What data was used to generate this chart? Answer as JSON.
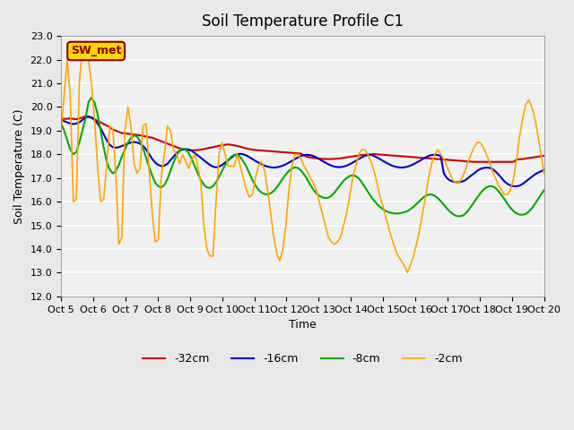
{
  "title": "Soil Temperature Profile C1",
  "xlabel": "Time",
  "ylabel": "Soil Temperature (C)",
  "ylim": [
    12.0,
    23.0
  ],
  "yticks": [
    12.0,
    13.0,
    14.0,
    15.0,
    16.0,
    17.0,
    18.0,
    19.0,
    20.0,
    21.0,
    22.0,
    23.0
  ],
  "xtick_labels": [
    "Oct 5",
    "Oct 6",
    "Oct 7",
    "Oct 8",
    "Oct 9",
    "Oct 10",
    "Oct 11",
    "Oct 12",
    "Oct 13",
    "Oct 14",
    "Oct 15",
    "Oct 16",
    "Oct 17",
    "Oct 18",
    "Oct 19",
    "Oct 20"
  ],
  "annotation_text": "SW_met",
  "annotation_fgcolor": "#8B0000",
  "annotation_bgcolor": "#FFD700",
  "background_color": "#E8E8E8",
  "plot_bg_color": "#F0F0F0",
  "n_points": 160,
  "series": [
    {
      "label": "-32cm",
      "color": "#CC0000",
      "linewidth": 1.5,
      "values": [
        19.5,
        19.5,
        19.5,
        19.52,
        19.5,
        19.48,
        19.52,
        19.55,
        19.6,
        19.58,
        19.55,
        19.5,
        19.4,
        19.35,
        19.28,
        19.22,
        19.15,
        19.05,
        19.0,
        18.95,
        18.9,
        18.88,
        18.87,
        18.85,
        18.83,
        18.82,
        18.8,
        18.78,
        18.75,
        18.72,
        18.7,
        18.65,
        18.6,
        18.55,
        18.5,
        18.45,
        18.4,
        18.35,
        18.3,
        18.25,
        18.22,
        18.2,
        18.18,
        18.17,
        18.17,
        18.18,
        18.2,
        18.22,
        18.25,
        18.28,
        18.3,
        18.33,
        18.36,
        18.38,
        18.4,
        18.42,
        18.4,
        18.38,
        18.35,
        18.32,
        18.28,
        18.25,
        18.22,
        18.2,
        18.18,
        18.17,
        18.16,
        18.15,
        18.14,
        18.13,
        18.12,
        18.11,
        18.1,
        18.09,
        18.08,
        18.07,
        18.06,
        18.05,
        18.04,
        18.03,
        17.95,
        17.9,
        17.87,
        17.85,
        17.83,
        17.82,
        17.81,
        17.8,
        17.8,
        17.8,
        17.81,
        17.82,
        17.83,
        17.85,
        17.87,
        17.89,
        17.91,
        17.93,
        17.95,
        17.97,
        17.98,
        17.99,
        18.0,
        18.01,
        18.0,
        17.99,
        17.98,
        17.97,
        17.96,
        17.95,
        17.94,
        17.93,
        17.92,
        17.91,
        17.9,
        17.89,
        17.88,
        17.87,
        17.86,
        17.85,
        17.84,
        17.83,
        17.82,
        17.81,
        17.8,
        17.79,
        17.78,
        17.77,
        17.76,
        17.75,
        17.74,
        17.73,
        17.72,
        17.71,
        17.7,
        17.69,
        17.68,
        17.68,
        17.68,
        17.68,
        17.68,
        17.68,
        17.68,
        17.68,
        17.68,
        17.68,
        17.68,
        17.68,
        17.68,
        17.68,
        17.78,
        17.79,
        17.8,
        17.82,
        17.84,
        17.86,
        17.88,
        17.9,
        17.92,
        17.94
      ]
    },
    {
      "label": "-16cm",
      "color": "#0000CC",
      "linewidth": 1.5,
      "values": [
        19.45,
        19.4,
        19.35,
        19.3,
        19.28,
        19.3,
        19.35,
        19.45,
        19.55,
        19.6,
        19.55,
        19.45,
        19.3,
        19.1,
        18.85,
        18.6,
        18.4,
        18.3,
        18.28,
        18.3,
        18.35,
        18.4,
        18.45,
        18.5,
        18.52,
        18.5,
        18.45,
        18.35,
        18.2,
        18.0,
        17.8,
        17.65,
        17.55,
        17.5,
        17.52,
        17.6,
        17.75,
        17.9,
        18.05,
        18.15,
        18.2,
        18.22,
        18.2,
        18.15,
        18.05,
        17.95,
        17.85,
        17.75,
        17.65,
        17.55,
        17.48,
        17.45,
        17.48,
        17.55,
        17.65,
        17.75,
        17.85,
        17.95,
        18.0,
        18.02,
        18.0,
        17.95,
        17.88,
        17.8,
        17.72,
        17.65,
        17.58,
        17.52,
        17.48,
        17.45,
        17.44,
        17.45,
        17.48,
        17.52,
        17.58,
        17.65,
        17.72,
        17.8,
        17.87,
        17.93,
        17.97,
        17.98,
        17.97,
        17.93,
        17.87,
        17.8,
        17.72,
        17.65,
        17.58,
        17.52,
        17.48,
        17.46,
        17.46,
        17.48,
        17.52,
        17.58,
        17.65,
        17.72,
        17.8,
        17.87,
        17.93,
        17.97,
        17.98,
        17.93,
        17.87,
        17.8,
        17.72,
        17.65,
        17.58,
        17.52,
        17.48,
        17.45,
        17.44,
        17.45,
        17.48,
        17.52,
        17.58,
        17.65,
        17.72,
        17.8,
        17.87,
        17.93,
        17.97,
        17.98,
        17.97,
        17.93,
        17.2,
        17.0,
        16.9,
        16.85,
        16.82,
        16.82,
        16.85,
        16.9,
        17.0,
        17.1,
        17.2,
        17.3,
        17.38,
        17.42,
        17.44,
        17.43,
        17.38,
        17.28,
        17.15,
        17.0,
        16.85,
        16.75,
        16.68,
        16.65,
        16.65,
        16.68,
        16.75,
        16.85,
        16.95,
        17.05,
        17.15,
        17.22,
        17.28,
        17.35
      ]
    },
    {
      "label": "-8cm",
      "color": "#00AA00",
      "linewidth": 1.5,
      "values": [
        19.3,
        19.0,
        18.6,
        18.2,
        18.0,
        18.1,
        18.5,
        19.0,
        19.5,
        20.2,
        20.4,
        20.2,
        19.7,
        19.0,
        18.3,
        17.7,
        17.35,
        17.2,
        17.3,
        17.55,
        17.9,
        18.2,
        18.5,
        18.7,
        18.8,
        18.75,
        18.55,
        18.25,
        17.85,
        17.45,
        17.1,
        16.8,
        16.65,
        16.6,
        16.7,
        16.95,
        17.3,
        17.65,
        17.95,
        18.15,
        18.25,
        18.2,
        18.05,
        17.8,
        17.5,
        17.2,
        16.92,
        16.72,
        16.6,
        16.58,
        16.65,
        16.82,
        17.05,
        17.3,
        17.55,
        17.75,
        17.9,
        17.98,
        17.98,
        17.88,
        17.7,
        17.48,
        17.2,
        16.92,
        16.68,
        16.5,
        16.38,
        16.32,
        16.3,
        16.35,
        16.45,
        16.6,
        16.78,
        16.98,
        17.15,
        17.3,
        17.4,
        17.45,
        17.42,
        17.32,
        17.15,
        16.95,
        16.72,
        16.52,
        16.35,
        16.25,
        16.18,
        16.15,
        16.17,
        16.25,
        16.38,
        16.55,
        16.72,
        16.88,
        17.0,
        17.08,
        17.12,
        17.08,
        16.98,
        16.82,
        16.62,
        16.42,
        16.22,
        16.05,
        15.9,
        15.78,
        15.68,
        15.6,
        15.55,
        15.52,
        15.5,
        15.5,
        15.52,
        15.55,
        15.6,
        15.68,
        15.78,
        15.9,
        16.02,
        16.15,
        16.25,
        16.3,
        16.3,
        16.25,
        16.15,
        16.02,
        15.88,
        15.72,
        15.58,
        15.48,
        15.4,
        15.38,
        15.4,
        15.48,
        15.62,
        15.8,
        15.98,
        16.18,
        16.35,
        16.5,
        16.6,
        16.65,
        16.65,
        16.58,
        16.45,
        16.28,
        16.1,
        15.9,
        15.73,
        15.6,
        15.5,
        15.45,
        15.45,
        15.48,
        15.58,
        15.72,
        15.9,
        16.1,
        16.3,
        16.48
      ]
    },
    {
      "label": "-2cm",
      "color": "#FFA500",
      "linewidth": 1.2,
      "values": [
        19.0,
        20.5,
        22.0,
        20.5,
        16.0,
        16.1,
        21.0,
        22.5,
        22.3,
        22.0,
        21.0,
        19.5,
        17.5,
        16.0,
        16.1,
        17.5,
        19.2,
        19.1,
        17.2,
        14.2,
        14.5,
        19.0,
        20.0,
        19.2,
        17.6,
        17.2,
        17.4,
        19.2,
        19.3,
        17.3,
        15.5,
        14.3,
        14.4,
        17.1,
        18.0,
        19.2,
        19.0,
        18.2,
        18.0,
        17.6,
        18.0,
        17.7,
        17.4,
        17.8,
        18.0,
        17.5,
        16.8,
        15.0,
        14.0,
        13.7,
        13.7,
        16.0,
        18.0,
        18.5,
        18.0,
        17.5,
        17.5,
        17.5,
        18.0,
        17.5,
        17.0,
        16.5,
        16.2,
        16.3,
        17.0,
        17.5,
        17.7,
        17.3,
        16.5,
        15.5,
        14.5,
        13.8,
        13.5,
        14.0,
        15.0,
        16.5,
        17.5,
        18.0,
        18.0,
        17.8,
        17.5,
        17.3,
        17.0,
        16.8,
        16.5,
        16.0,
        15.5,
        15.0,
        14.5,
        14.3,
        14.2,
        14.3,
        14.5,
        15.0,
        15.5,
        16.2,
        17.0,
        17.5,
        18.0,
        18.2,
        18.2,
        18.0,
        17.7,
        17.3,
        16.8,
        16.2,
        15.8,
        15.3,
        14.8,
        14.4,
        14.0,
        13.7,
        13.5,
        13.3,
        13.0,
        13.3,
        13.7,
        14.2,
        14.8,
        15.5,
        16.2,
        17.0,
        17.6,
        18.0,
        18.2,
        18.0,
        17.8,
        17.5,
        17.2,
        16.9,
        16.8,
        16.8,
        17.0,
        17.3,
        17.7,
        18.0,
        18.3,
        18.5,
        18.5,
        18.3,
        18.0,
        17.7,
        17.3,
        17.0,
        16.7,
        16.5,
        16.3,
        16.3,
        16.5,
        17.0,
        17.8,
        18.8,
        19.5,
        20.1,
        20.3,
        20.0,
        19.5,
        18.8,
        18.0,
        17.2
      ]
    }
  ]
}
